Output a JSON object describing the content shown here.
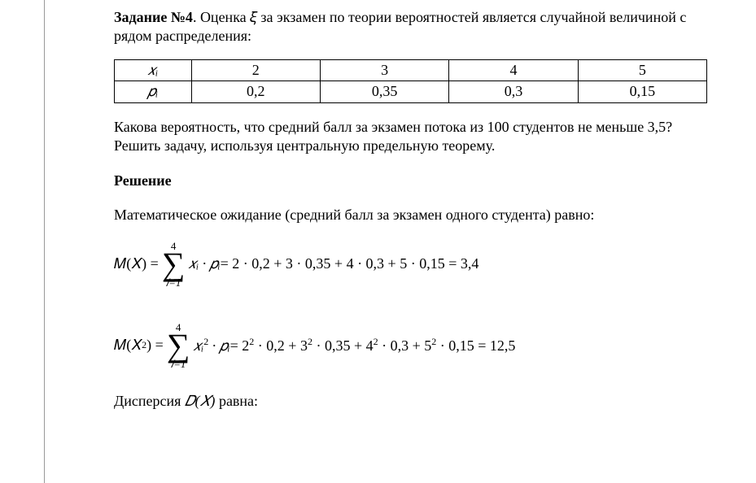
{
  "task": {
    "label_bold": "Задание №4",
    "sentence_rest": ". Оценка 𝜉 за экзамен по теории вероятностей является случайной величиной с рядом распределения:"
  },
  "table": {
    "row1": {
      "h": "𝑥ᵢ",
      "c1": "2",
      "c2": "3",
      "c3": "4",
      "c4": "5"
    },
    "row2": {
      "h": "𝑝ᵢ",
      "c1": "0,2",
      "c2": "0,35",
      "c3": "0,3",
      "c4": "0,15"
    }
  },
  "question": "Какова вероятность, что средний балл за экзамен потока из 100 студентов не меньше 3,5? Решить задачу, используя центральную предельную теорему.",
  "solution_heading": "Решение",
  "exp_line": "Математическое ожидание (средний балл за экзамен одного студента) равно:",
  "formula1": {
    "lhs": "𝑀(𝑋) =",
    "upper": "4",
    "sigma": "∑",
    "lower": "𝑖=1",
    "term": "𝑥ᵢ · 𝑝ᵢ",
    "rhs": " = 2 · 0,2 + 3 · 0,35 + 4 · 0,3 + 5 · 0,15 = 3,4"
  },
  "formula2": {
    "lhs_a": "𝑀(𝑋",
    "lhs_sup": "2",
    "lhs_b": ") =",
    "upper": "4",
    "sigma": "∑",
    "lower": "𝑖=1",
    "term_a": "𝑥ᵢ",
    "term_sup": "2",
    "term_b": " · 𝑝ᵢ",
    "rhs_a": " = 2",
    "rhs_s1": "2",
    "rhs_b": " · 0,2 + 3",
    "rhs_s2": "2",
    "rhs_c": " · 0,35 + 4",
    "rhs_s3": "2",
    "rhs_d": " · 0,3 + 5",
    "rhs_s4": "2",
    "rhs_e": " · 0,15 = 12,5"
  },
  "disp_line_a": "Дисперсия ",
  "disp_line_b": "𝐷(𝑋)",
  "disp_line_c": " равна:"
}
